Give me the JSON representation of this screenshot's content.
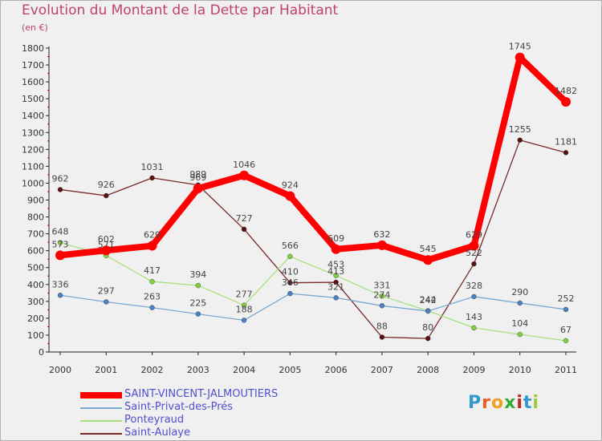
{
  "title": "Evolution du Montant de la Dette par Habitant",
  "unit": "(en €)",
  "logo": {
    "text": "Proxiti",
    "letters": [
      "P",
      "r",
      "o",
      "x",
      "i",
      "t",
      "i"
    ],
    "colors": [
      "#3399cc",
      "#e86020",
      "#f0a020",
      "#33aa33",
      "#cc2222",
      "#3399cc",
      "#99cc33"
    ]
  },
  "chart_data": {
    "type": "line",
    "title": "Evolution du Montant de la Dette par Habitant",
    "ylabel": "(en €)",
    "xlabel": "",
    "x": [
      "2000",
      "2001",
      "2002",
      "2003",
      "2004",
      "2005",
      "2006",
      "2007",
      "2008",
      "2009",
      "2010",
      "2011"
    ],
    "ylim": [
      0,
      1800
    ],
    "yticks": [
      0,
      100,
      200,
      300,
      400,
      500,
      600,
      700,
      800,
      900,
      1000,
      1100,
      1200,
      1300,
      1400,
      1500,
      1600,
      1700,
      1800
    ],
    "grid": false,
    "legend_position": "bottom-left",
    "series": [
      {
        "name": "SAINT-VINCENT-JALMOUTIERS",
        "color": "#ff0000",
        "marker": "#ff0000",
        "values": [
          573,
          602,
          629,
          969,
          1046,
          924,
          609,
          632,
          545,
          629,
          1745,
          1482
        ]
      },
      {
        "name": "Saint-Privat-des-Prés",
        "color": "#7aa7d2",
        "marker": "#4a80c8",
        "values": [
          336,
          297,
          263,
          225,
          188,
          346,
          321,
          274,
          242,
          328,
          290,
          252
        ]
      },
      {
        "name": "Ponteyraud",
        "color": "#a8e080",
        "marker": "#80d040",
        "values": [
          648,
          571,
          417,
          394,
          277,
          566,
          453,
          331,
          244,
          143,
          104,
          67
        ]
      },
      {
        "name": "Saint-Aulaye",
        "color": "#7a2a2a",
        "marker": "#5a1010",
        "values": [
          962,
          926,
          1031,
          989,
          727,
          410,
          413,
          88,
          80,
          522,
          1255,
          1181
        ]
      }
    ]
  }
}
